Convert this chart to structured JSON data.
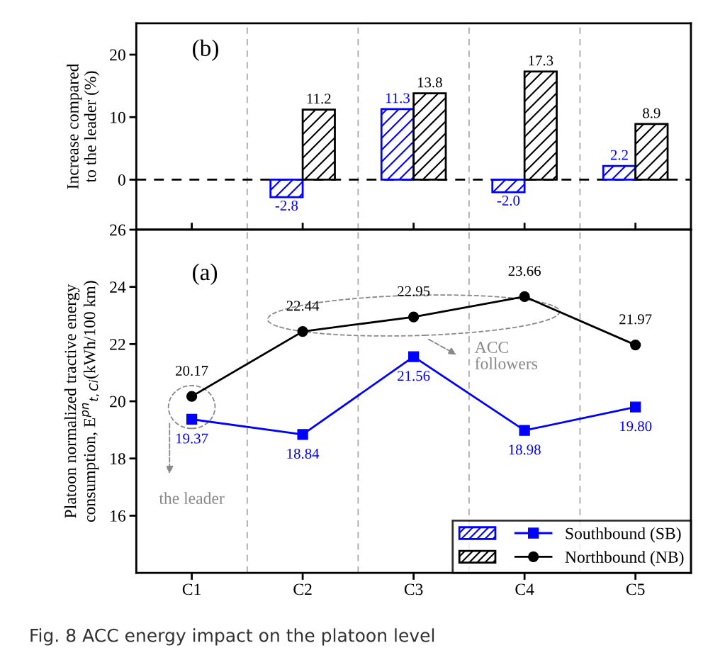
{
  "chart_data": [
    {
      "type": "bar",
      "ylabel": "Increase compared\nto the leader (%)",
      "categories": [
        null,
        null,
        null,
        null,
        null
      ],
      "ylim": [
        -8,
        25
      ],
      "yticks": [
        0,
        10,
        20
      ],
      "tick_labels": "y",
      "series": [
        {
          "color": "#0000ff",
          "values": [
            null,
            -2.8,
            11.3,
            -2.0,
            2.2
          ],
          "value_labels": [
            null,
            "-2.8",
            "11.3",
            "-2.0",
            "2.2"
          ]
        },
        {
          "color": "#000000",
          "values": [
            null,
            11.2,
            13.8,
            17.3,
            8.9
          ],
          "value_labels": [
            null,
            "11.2",
            "13.8",
            "17.3",
            "8.9"
          ]
        }
      ],
      "grid": false,
      "ref_lines": [
        {
          "axis": "y",
          "value": 0,
          "color": "#000000",
          "line_style": "dashed"
        }
      ],
      "annotations": [
        "(b)"
      ]
    },
    {
      "type": "line",
      "ylabel": "Platoon normalized tractive energy\nconsumption, E$^{pn}$$_{t,Ci}$(kWh/100 km)",
      "categories": [
        "C1",
        "C2",
        "C3",
        "C4",
        "C5"
      ],
      "ylim": [
        14,
        26
      ],
      "yticks": [
        16,
        18,
        20,
        22,
        24,
        26
      ],
      "series": [
        {
          "name": "Southbound (SB)",
          "color": "#0000ff",
          "marker": "square",
          "line_style": "solid",
          "values": [
            19.37,
            18.84,
            21.56,
            18.98,
            19.8
          ],
          "value_labels": [
            "19.37",
            "18.84",
            "21.56",
            "18.98",
            "19.80"
          ]
        },
        {
          "name": "Northbound (NB)",
          "color": "#000000",
          "marker": "circle",
          "line_style": "solid",
          "values": [
            20.17,
            22.44,
            22.95,
            23.66,
            21.97
          ],
          "value_labels": [
            "20.17",
            "22.44",
            "22.95",
            "23.66",
            "21.97"
          ]
        }
      ],
      "grid": false,
      "legend": "bottom right",
      "annotations": [
        "(a)",
        "the leader",
        "ACC\nfollowers",
        "Fig. 8 ACC energy impact on the platoon level"
      ]
    }
  ]
}
